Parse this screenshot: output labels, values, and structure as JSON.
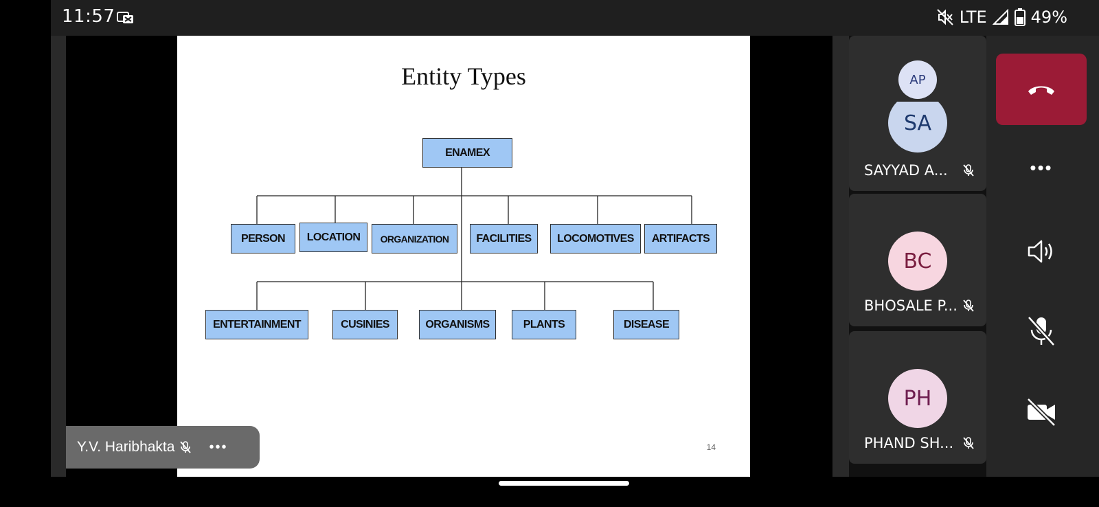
{
  "status_bar": {
    "time": "11:57",
    "network": "LTE",
    "battery": "49%",
    "icons": [
      "notification-icon",
      "mute-icon",
      "signal-icon",
      "battery-icon"
    ]
  },
  "slide": {
    "title": "Entity Types",
    "page_number": "14",
    "root": "ENAMEX",
    "row1": [
      "PERSON",
      "LOCATION",
      "ORGANIZATION",
      "FACILITIES",
      "LOCOMOTIVES",
      "ARTIFACTS"
    ],
    "row2": [
      "ENTERTAINMENT",
      "CUSINIES",
      "ORGANISMS",
      "PLANTS",
      "DISEASE"
    ],
    "node_color": "#9fc7f4"
  },
  "presenter": {
    "name": "Y.V. Haribhakta",
    "more": "•••"
  },
  "participants": [
    {
      "initials": "AP",
      "avatar_bg": "#dde2f5",
      "avatar_fg": "#2a3a7a"
    },
    {
      "initials": "SA",
      "name": "SAYYAD A...",
      "avatar_bg": "#c9d6ee",
      "avatar_fg": "#1e3a6e"
    },
    {
      "initials": "BC",
      "name": "BHOSALE P...",
      "avatar_bg": "#f7d6e0",
      "avatar_fg": "#7a1e40"
    },
    {
      "initials": "PH",
      "name": "PHAND SH...",
      "avatar_bg": "#f0d6e6",
      "avatar_fg": "#6e1e50"
    }
  ],
  "controls": {
    "more": "•••",
    "end_call_color": "#9b1b36"
  }
}
